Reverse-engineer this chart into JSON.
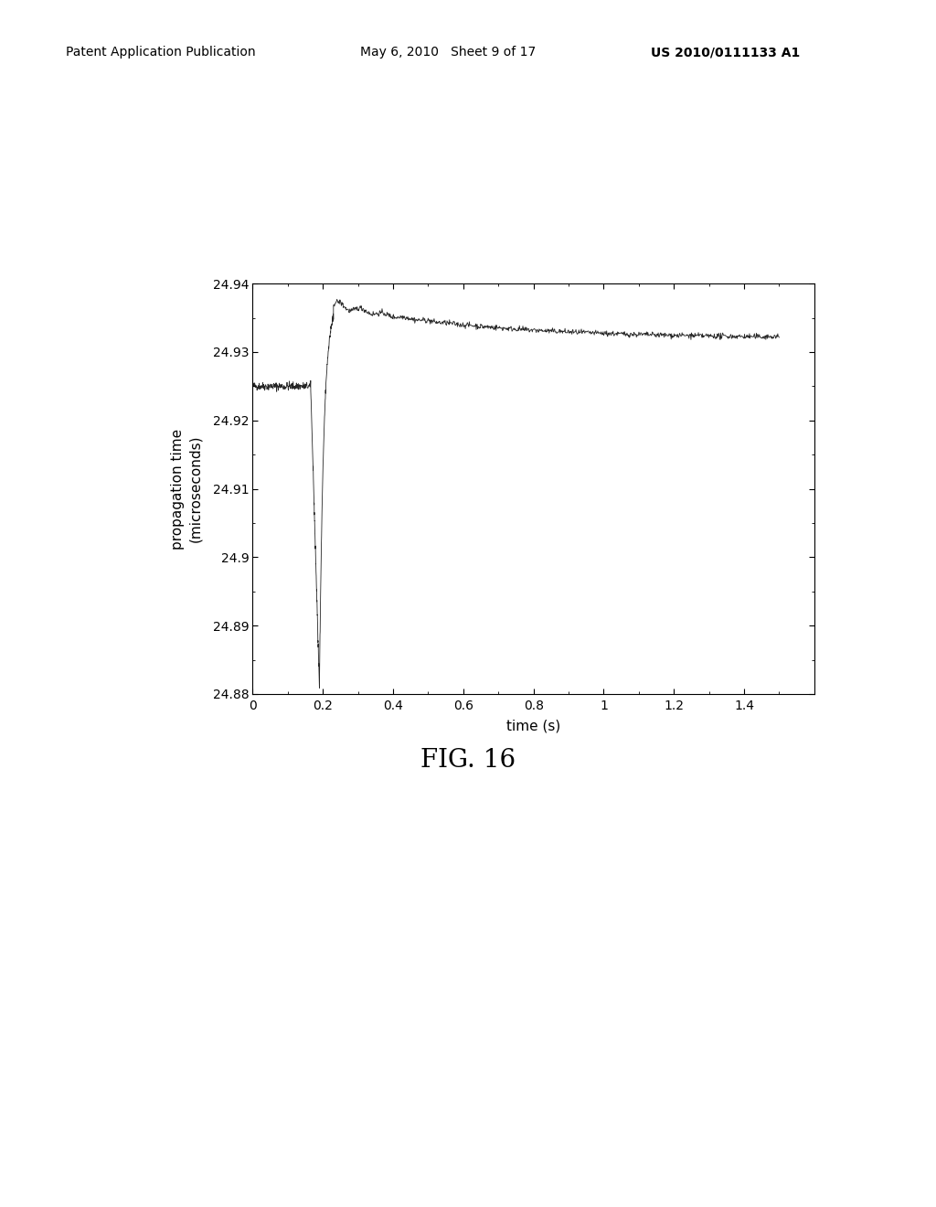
{
  "header_left": "Patent Application Publication",
  "header_mid": "May 6, 2010   Sheet 9 of 17",
  "header_right": "US 2010/0111133 A1",
  "figure_label": "FIG. 16",
  "xlabel": "time (s)",
  "ylabel_line1": "propagation time",
  "ylabel_line2": "(microseconds)",
  "xlim": [
    0,
    1.6
  ],
  "ylim": [
    24.88,
    24.94
  ],
  "xticks": [
    0,
    0.2,
    0.4,
    0.6,
    0.8,
    1.0,
    1.2,
    1.4
  ],
  "yticks": [
    24.88,
    24.89,
    24.9,
    24.91,
    24.92,
    24.93,
    24.94
  ],
  "ytick_labels": [
    "24.88",
    "24.89",
    "24.9",
    "24.91",
    "24.92",
    "24.93",
    "24.94"
  ],
  "background_color": "#ffffff",
  "line_color": "#000000",
  "header_fontsize": 10,
  "axis_label_fontsize": 11,
  "tick_fontsize": 10,
  "fig_label_fontsize": 20
}
